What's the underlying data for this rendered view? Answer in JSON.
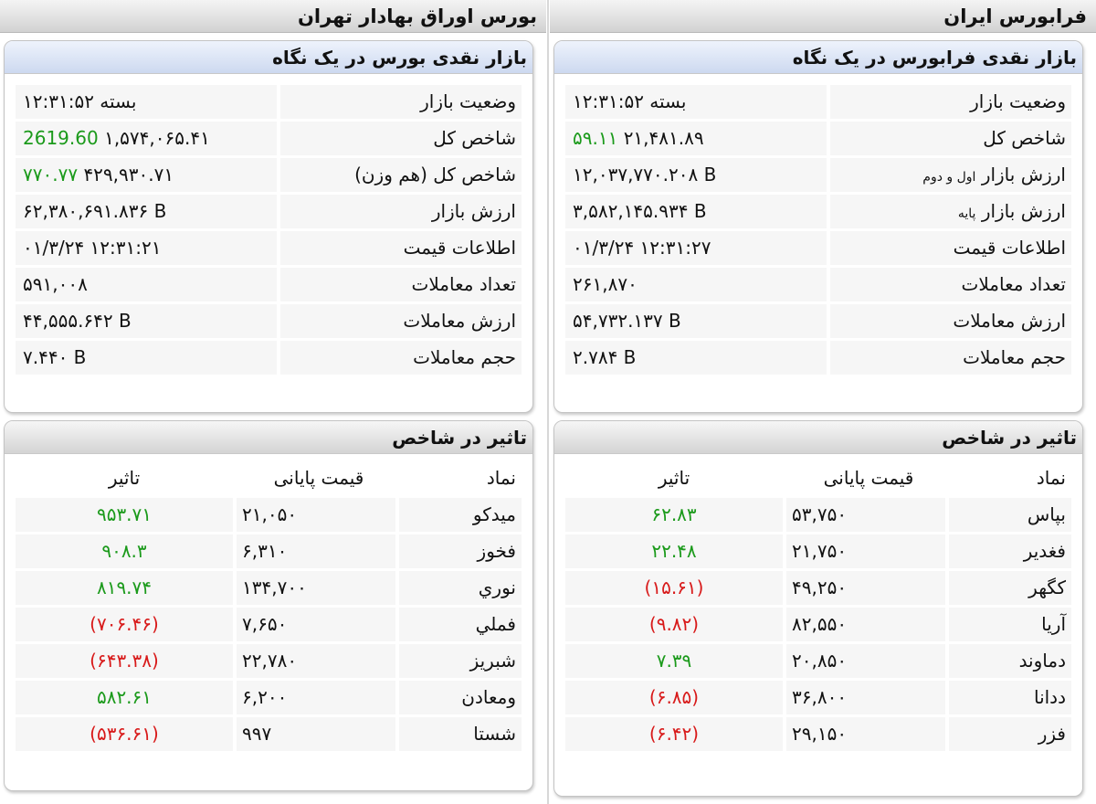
{
  "farabourse": {
    "header": "فرابورس ایران",
    "overview": {
      "title": "بازار نقدی فرابورس در یک نگاه",
      "rows": [
        {
          "label": "وضعیت بازار",
          "suffix": "",
          "value": "بسته ۱۲:۳۱:۵۲",
          "extra": ""
        },
        {
          "label": "شاخص کل",
          "suffix": "",
          "value": "۲۱,۴۸۱.۸۹",
          "extra": "۵۹.۱۱"
        },
        {
          "label": "ارزش بازار",
          "suffix": "اول و دوم",
          "value": "۱۲,۰۳۷,۷۷۰.۲۰۸ B",
          "extra": ""
        },
        {
          "label": "ارزش بازار",
          "suffix": "پایه",
          "value": "۳,۵۸۲,۱۴۵.۹۳۴ B",
          "extra": ""
        },
        {
          "label": "اطلاعات قیمت",
          "suffix": "",
          "value": "۰۱/۳/۲۴ ۱۲:۳۱:۲۷",
          "extra": ""
        },
        {
          "label": "تعداد معاملات",
          "suffix": "",
          "value": "۲۶۱,۸۷۰",
          "extra": ""
        },
        {
          "label": "ارزش معاملات",
          "suffix": "",
          "value": "۵۴,۷۳۲.۱۳۷ B",
          "extra": ""
        },
        {
          "label": "حجم معاملات",
          "suffix": "",
          "value": "۲.۷۸۴ B",
          "extra": ""
        }
      ]
    },
    "impact": {
      "title": "تاثیر در شاخص",
      "columns": {
        "symbol": "نماد",
        "price": "قیمت پایانی",
        "impact": "تاثیر"
      },
      "rows": [
        {
          "symbol": "بپاس",
          "price": "۵۳,۷۵۰",
          "impact": "۶۲.۸۳",
          "sign": "pos"
        },
        {
          "symbol": "فغدیر",
          "price": "۲۱,۷۵۰",
          "impact": "۲۲.۴۸",
          "sign": "pos"
        },
        {
          "symbol": "کگهر",
          "price": "۴۹,۲۵۰",
          "impact": "(۱۵.۶۱)",
          "sign": "neg"
        },
        {
          "symbol": "آریا",
          "price": "۸۲,۵۵۰",
          "impact": "(۹.۸۲)",
          "sign": "neg"
        },
        {
          "symbol": "دماوند",
          "price": "۲۰,۸۵۰",
          "impact": "۷.۳۹",
          "sign": "pos"
        },
        {
          "symbol": "ددانا",
          "price": "۳۶,۸۰۰",
          "impact": "(۶.۸۵)",
          "sign": "neg"
        },
        {
          "symbol": "فزر",
          "price": "۲۹,۱۵۰",
          "impact": "(۶.۴۲)",
          "sign": "neg"
        }
      ]
    }
  },
  "bourse": {
    "header": "بورس اوراق بهادار تهران",
    "overview": {
      "title": "بازار نقدی بورس در یک نگاه",
      "rows": [
        {
          "label": "وضعیت بازار",
          "suffix": "",
          "value": "بسته ۱۲:۳۱:۵۲",
          "extra": ""
        },
        {
          "label": "شاخص کل",
          "suffix": "",
          "value": "۱,۵۷۴,۰۶۵.۴۱",
          "extra": "2619.60"
        },
        {
          "label": "شاخص کل (هم وزن)",
          "suffix": "",
          "value": "۴۲۹,۹۳۰.۷۱",
          "extra": "۷۷۰.۷۷"
        },
        {
          "label": "ارزش بازار",
          "suffix": "",
          "value": "۶۲,۳۸۰,۶۹۱.۸۳۶ B",
          "extra": ""
        },
        {
          "label": "اطلاعات قیمت",
          "suffix": "",
          "value": "۰۱/۳/۲۴ ۱۲:۳۱:۲۱",
          "extra": ""
        },
        {
          "label": "تعداد معاملات",
          "suffix": "",
          "value": "۵۹۱,۰۰۸",
          "extra": ""
        },
        {
          "label": "ارزش معاملات",
          "suffix": "",
          "value": "۴۴,۵۵۵.۶۴۲ B",
          "extra": ""
        },
        {
          "label": "حجم معاملات",
          "suffix": "",
          "value": "۷.۴۴۰ B",
          "extra": ""
        }
      ]
    },
    "impact": {
      "title": "تاثیر در شاخص",
      "columns": {
        "symbol": "نماد",
        "price": "قیمت پایانی",
        "impact": "تاثیر"
      },
      "rows": [
        {
          "symbol": "میدکو",
          "price": "۲۱,۰۵۰",
          "impact": "۹۵۳.۷۱",
          "sign": "pos"
        },
        {
          "symbol": "فخوز",
          "price": "۶,۳۱۰",
          "impact": "۹۰۸.۳",
          "sign": "pos"
        },
        {
          "symbol": "نوري",
          "price": "۱۳۴,۷۰۰",
          "impact": "۸۱۹.۷۴",
          "sign": "pos"
        },
        {
          "symbol": "فملي",
          "price": "۷,۶۵۰",
          "impact": "(۷۰۶.۴۶)",
          "sign": "neg"
        },
        {
          "symbol": "شبريز",
          "price": "۲۲,۷۸۰",
          "impact": "(۶۴۳.۳۸)",
          "sign": "neg"
        },
        {
          "symbol": "ومعادن",
          "price": "۶,۲۰۰",
          "impact": "۵۸۲.۶۱",
          "sign": "pos"
        },
        {
          "symbol": "شستا",
          "price": "۹۹۷",
          "impact": "(۵۳۶.۶۱)",
          "sign": "neg"
        }
      ]
    }
  },
  "colors": {
    "positive": "#1b9a1b",
    "negative": "#d81a1a",
    "title_blue": "#cdd9f0",
    "title_grey": "#d4d4d4"
  }
}
